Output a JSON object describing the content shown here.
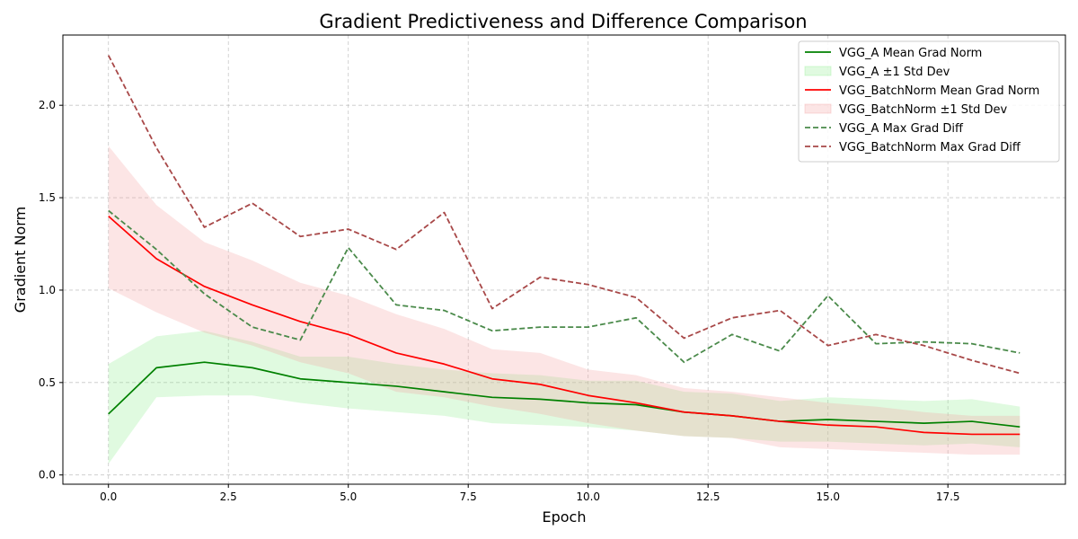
{
  "chart_data": {
    "type": "line",
    "title": "Gradient Predictiveness and Difference Comparison",
    "xlabel": "Epoch",
    "ylabel": "Gradient Norm",
    "xlim": [
      -0.95,
      19.95
    ],
    "ylim": [
      -0.05,
      2.38
    ],
    "xticks": [
      0.0,
      2.5,
      5.0,
      7.5,
      10.0,
      12.5,
      15.0,
      17.5
    ],
    "xtick_labels": [
      "0.0",
      "2.5",
      "5.0",
      "7.5",
      "10.0",
      "12.5",
      "15.0",
      "17.5"
    ],
    "yticks": [
      0.0,
      0.5,
      1.0,
      1.5,
      2.0
    ],
    "ytick_labels": [
      "0.0",
      "0.5",
      "1.0",
      "1.5",
      "2.0"
    ],
    "grid": true,
    "legend_position": "top-right",
    "x": [
      0,
      1,
      2,
      3,
      4,
      5,
      6,
      7,
      8,
      9,
      10,
      11,
      12,
      13,
      14,
      15,
      16,
      17,
      18,
      19
    ],
    "bands": [
      {
        "name": "VGG_A ±1 Std Dev",
        "color": "#90ee90",
        "lower": [
          0.06,
          0.42,
          0.43,
          0.43,
          0.39,
          0.36,
          0.34,
          0.32,
          0.28,
          0.27,
          0.26,
          0.24,
          0.21,
          0.2,
          0.18,
          0.18,
          0.17,
          0.16,
          0.17,
          0.15
        ],
        "upper": [
          0.6,
          0.75,
          0.78,
          0.72,
          0.64,
          0.64,
          0.6,
          0.57,
          0.55,
          0.54,
          0.51,
          0.51,
          0.45,
          0.44,
          0.4,
          0.42,
          0.41,
          0.4,
          0.41,
          0.37
        ]
      },
      {
        "name": "VGG_BatchNorm ±1 Std Dev",
        "color": "#f4a0a0",
        "lower": [
          1.01,
          0.88,
          0.77,
          0.7,
          0.61,
          0.55,
          0.45,
          0.42,
          0.37,
          0.33,
          0.28,
          0.24,
          0.21,
          0.2,
          0.15,
          0.14,
          0.13,
          0.12,
          0.11,
          0.11
        ],
        "upper": [
          1.78,
          1.46,
          1.26,
          1.16,
          1.04,
          0.97,
          0.87,
          0.79,
          0.68,
          0.66,
          0.57,
          0.54,
          0.47,
          0.45,
          0.42,
          0.39,
          0.37,
          0.34,
          0.32,
          0.32
        ]
      }
    ],
    "series": [
      {
        "name": "VGG_A Mean Grad Norm",
        "color": "#008000",
        "style": "solid",
        "values": [
          0.33,
          0.58,
          0.61,
          0.58,
          0.52,
          0.5,
          0.48,
          0.45,
          0.42,
          0.41,
          0.39,
          0.38,
          0.34,
          0.32,
          0.29,
          0.3,
          0.29,
          0.28,
          0.29,
          0.26
        ]
      },
      {
        "name": "VGG_BatchNorm Mean Grad Norm",
        "color": "#ff0000",
        "style": "solid",
        "values": [
          1.4,
          1.17,
          1.02,
          0.92,
          0.83,
          0.76,
          0.66,
          0.6,
          0.52,
          0.49,
          0.43,
          0.39,
          0.34,
          0.32,
          0.29,
          0.27,
          0.26,
          0.23,
          0.22,
          0.22
        ]
      },
      {
        "name": "VGG_A Max Grad Diff",
        "color": "#4a8a4a",
        "style": "dashed",
        "values": [
          1.43,
          1.22,
          0.98,
          0.8,
          0.73,
          1.23,
          0.92,
          0.89,
          0.78,
          0.8,
          0.8,
          0.85,
          0.61,
          0.76,
          0.67,
          0.97,
          0.71,
          0.72,
          0.71,
          0.66
        ]
      },
      {
        "name": "VGG_BatchNorm Max Grad Diff",
        "color": "#a84848",
        "style": "dashed",
        "values": [
          2.27,
          1.77,
          1.34,
          1.47,
          1.29,
          1.33,
          1.22,
          1.42,
          0.9,
          1.07,
          1.03,
          0.96,
          0.74,
          0.85,
          0.89,
          0.7,
          0.76,
          0.7,
          0.62,
          0.55
        ]
      }
    ],
    "legend": [
      {
        "label": "VGG_A Mean Grad Norm",
        "kind": "line",
        "ref": "series.0"
      },
      {
        "label": "VGG_A ±1 Std Dev",
        "kind": "band",
        "ref": "bands.0"
      },
      {
        "label": "VGG_BatchNorm Mean Grad Norm",
        "kind": "line",
        "ref": "series.1"
      },
      {
        "label": "VGG_BatchNorm ±1 Std Dev",
        "kind": "band",
        "ref": "bands.1"
      },
      {
        "label": "VGG_A Max Grad Diff",
        "kind": "line",
        "ref": "series.2"
      },
      {
        "label": "VGG_BatchNorm Max Grad Diff",
        "kind": "line",
        "ref": "series.3"
      }
    ]
  }
}
